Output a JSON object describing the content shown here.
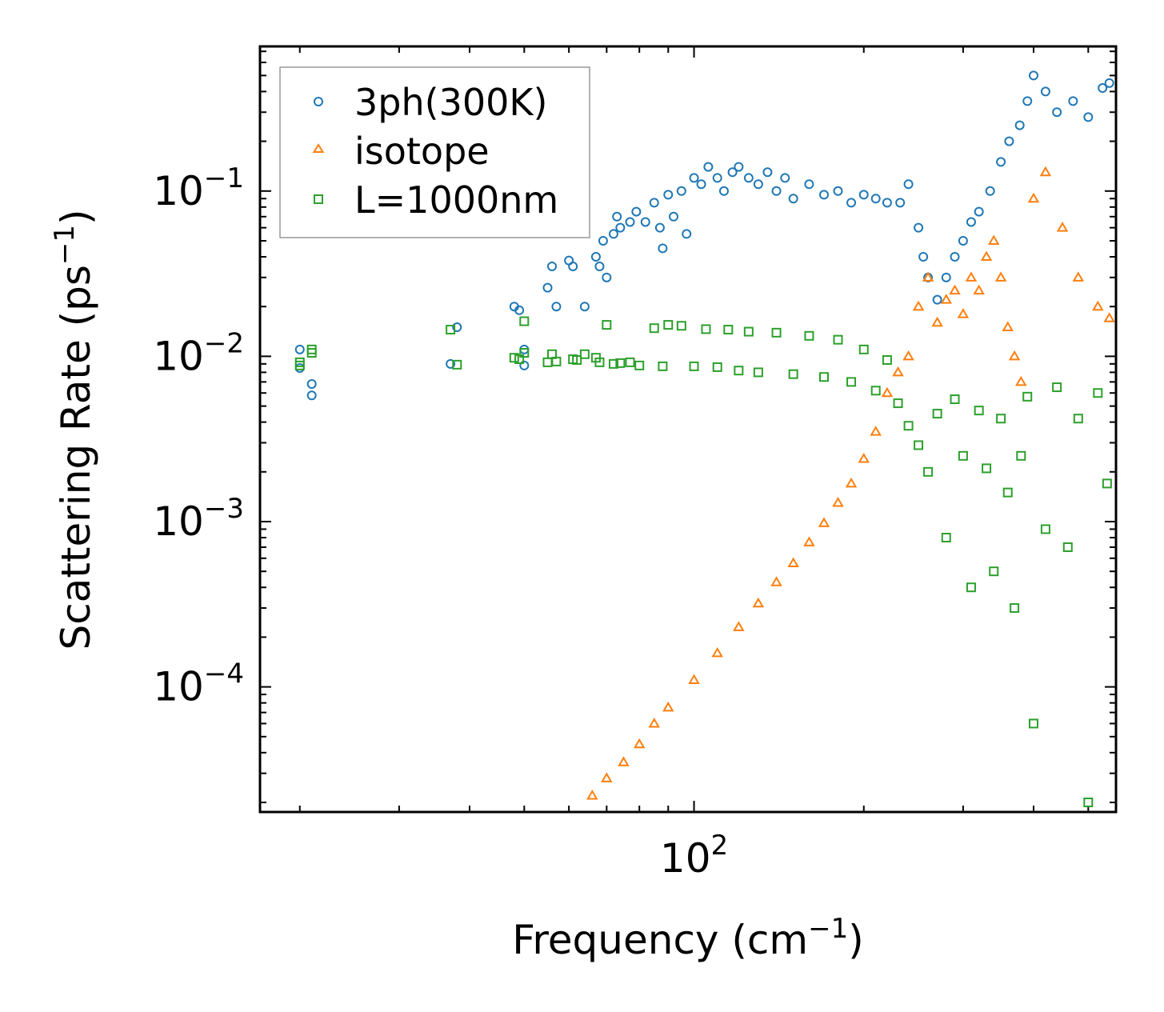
{
  "chart_data": {
    "type": "scatter",
    "title": "",
    "xlabel": "Frequency (cm",
    "xlabel_sup": "−1",
    "xlabel_end": ")",
    "ylabel": "Scattering Rate (ps",
    "ylabel_sup": "−1",
    "ylabel_end": ")",
    "xscale": "log",
    "yscale": "log",
    "xlim": [
      17,
      560
    ],
    "ylim": [
      1.75e-05,
      0.75
    ],
    "x_ticks": [
      {
        "value": 100,
        "base": "10",
        "exp": "2"
      }
    ],
    "y_ticks": [
      {
        "value": 0.1,
        "base": "10",
        "exp": "−1"
      },
      {
        "value": 0.01,
        "base": "10",
        "exp": "−2"
      },
      {
        "value": 0.001,
        "base": "10",
        "exp": "−3"
      },
      {
        "value": 0.0001,
        "base": "10",
        "exp": "−4"
      }
    ],
    "legend_position": "top-left",
    "series": [
      {
        "name": "3ph(300K)",
        "marker": "circle",
        "color": "#1f77b4",
        "x": [
          20,
          20,
          21,
          21,
          37,
          38,
          48,
          49,
          50,
          50,
          55,
          56,
          57,
          60,
          61,
          64,
          67,
          68,
          69,
          70,
          72,
          73,
          74,
          77,
          79,
          82,
          85,
          87,
          88,
          90,
          92,
          95,
          97,
          100,
          103,
          106,
          110,
          113,
          117,
          120,
          125,
          130,
          135,
          140,
          145,
          150,
          160,
          170,
          180,
          190,
          200,
          210,
          220,
          232,
          240,
          250,
          255,
          260,
          270,
          280,
          290,
          300,
          310,
          320,
          335,
          350,
          362,
          378,
          390,
          400,
          420,
          440,
          470,
          500,
          530,
          545
        ],
        "y": [
          0.011,
          0.0085,
          0.0068,
          0.0058,
          0.009,
          0.015,
          0.02,
          0.019,
          0.0088,
          0.011,
          0.026,
          0.035,
          0.02,
          0.038,
          0.035,
          0.02,
          0.04,
          0.035,
          0.05,
          0.03,
          0.055,
          0.07,
          0.06,
          0.065,
          0.075,
          0.065,
          0.085,
          0.06,
          0.045,
          0.095,
          0.07,
          0.1,
          0.055,
          0.12,
          0.11,
          0.14,
          0.12,
          0.1,
          0.13,
          0.14,
          0.12,
          0.11,
          0.13,
          0.1,
          0.12,
          0.09,
          0.11,
          0.095,
          0.1,
          0.085,
          0.095,
          0.09,
          0.085,
          0.085,
          0.11,
          0.06,
          0.04,
          0.03,
          0.022,
          0.03,
          0.04,
          0.05,
          0.065,
          0.075,
          0.1,
          0.15,
          0.2,
          0.25,
          0.35,
          0.5,
          0.4,
          0.3,
          0.35,
          0.28,
          0.42,
          0.45
        ]
      },
      {
        "name": "isotope",
        "marker": "triangle",
        "color": "#ff7f0e",
        "x": [
          66,
          70,
          75,
          80,
          85,
          90,
          100,
          110,
          120,
          130,
          140,
          150,
          160,
          170,
          180,
          190,
          200,
          210,
          220,
          230,
          240,
          250,
          260,
          270,
          280,
          290,
          300,
          310,
          320,
          330,
          340,
          350,
          360,
          370,
          380,
          400,
          420,
          450,
          480,
          520,
          545
        ],
        "y": [
          2.2e-05,
          2.8e-05,
          3.5e-05,
          4.5e-05,
          6e-05,
          7.5e-05,
          0.00011,
          0.00016,
          0.00023,
          0.00032,
          0.00043,
          0.00056,
          0.00075,
          0.00098,
          0.0013,
          0.0017,
          0.0024,
          0.0035,
          0.006,
          0.008,
          0.01,
          0.02,
          0.03,
          0.016,
          0.022,
          0.025,
          0.018,
          0.03,
          0.025,
          0.04,
          0.05,
          0.03,
          0.015,
          0.01,
          0.007,
          0.09,
          0.13,
          0.06,
          0.03,
          0.02,
          0.017
        ]
      },
      {
        "name": "L=1000nm",
        "marker": "square",
        "color": "#2ca02c",
        "x": [
          20,
          20,
          21,
          21,
          37,
          38,
          48,
          49,
          50,
          50,
          55,
          56,
          57,
          61,
          62,
          64,
          67,
          68,
          70,
          72,
          74,
          77,
          80,
          85,
          88,
          90,
          95,
          100,
          105,
          110,
          115,
          120,
          125,
          130,
          140,
          150,
          160,
          170,
          180,
          190,
          200,
          210,
          220,
          230,
          240,
          250,
          260,
          270,
          280,
          290,
          300,
          310,
          320,
          330,
          340,
          350,
          360,
          370,
          380,
          390,
          400,
          420,
          440,
          460,
          480,
          500,
          520,
          540
        ],
        "y": [
          0.0092,
          0.0088,
          0.011,
          0.0105,
          0.0145,
          0.0089,
          0.0098,
          0.0096,
          0.0163,
          0.0105,
          0.0092,
          0.0103,
          0.0093,
          0.0096,
          0.0095,
          0.0103,
          0.0098,
          0.0092,
          0.0155,
          0.009,
          0.0091,
          0.0092,
          0.0088,
          0.0148,
          0.0087,
          0.0155,
          0.0153,
          0.0087,
          0.0146,
          0.0086,
          0.0145,
          0.0082,
          0.0141,
          0.008,
          0.0139,
          0.0078,
          0.0133,
          0.0075,
          0.0126,
          0.007,
          0.011,
          0.0062,
          0.0095,
          0.0052,
          0.0038,
          0.0029,
          0.002,
          0.0045,
          0.0008,
          0.0055,
          0.0025,
          0.0004,
          0.0047,
          0.0021,
          0.0005,
          0.0042,
          0.0015,
          0.0003,
          0.0025,
          0.0057,
          6e-05,
          0.0009,
          0.0065,
          0.0007,
          0.0042,
          2e-05,
          0.006,
          0.0017
        ]
      }
    ]
  },
  "legend": [
    {
      "label": "3ph(300K)",
      "marker": "circle",
      "color": "#1f77b4"
    },
    {
      "label": "isotope",
      "marker": "triangle",
      "color": "#ff7f0e"
    },
    {
      "label": "L=1000nm",
      "marker": "square",
      "color": "#2ca02c"
    }
  ]
}
